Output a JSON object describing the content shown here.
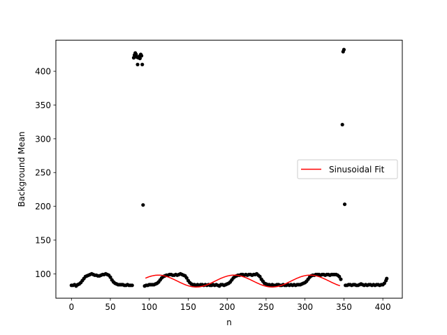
{
  "chart_data": {
    "type": "scatter",
    "xlabel": "n",
    "ylabel": "Background Mean",
    "xlim": [
      -20,
      425
    ],
    "ylim": [
      64,
      446
    ],
    "xticks": [
      0,
      50,
      100,
      150,
      200,
      250,
      300,
      350,
      400
    ],
    "yticks": [
      100,
      150,
      200,
      250,
      300,
      350,
      400
    ],
    "grid": false,
    "legend": {
      "entries": [
        "Sinusoidal Fit"
      ],
      "placement": "center-right"
    },
    "colors": {
      "points": "#000000",
      "fit": "#ff0000"
    },
    "series": [
      {
        "kind": "scatter",
        "points": [
          [
            0,
            83
          ],
          [
            2,
            83
          ],
          [
            4,
            84
          ],
          [
            6,
            82
          ],
          [
            8,
            84
          ],
          [
            10,
            85
          ],
          [
            12,
            87
          ],
          [
            14,
            90
          ],
          [
            16,
            93
          ],
          [
            18,
            96
          ],
          [
            20,
            97
          ],
          [
            22,
            98
          ],
          [
            24,
            99
          ],
          [
            26,
            100
          ],
          [
            28,
            99
          ],
          [
            30,
            98
          ],
          [
            32,
            98
          ],
          [
            34,
            97
          ],
          [
            36,
            97
          ],
          [
            38,
            98
          ],
          [
            40,
            99
          ],
          [
            42,
            99
          ],
          [
            44,
            100
          ],
          [
            46,
            99
          ],
          [
            48,
            98
          ],
          [
            50,
            95
          ],
          [
            52,
            91
          ],
          [
            54,
            88
          ],
          [
            56,
            86
          ],
          [
            58,
            85
          ],
          [
            60,
            84
          ],
          [
            62,
            84
          ],
          [
            64,
            84
          ],
          [
            66,
            84
          ],
          [
            68,
            83
          ],
          [
            70,
            83
          ],
          [
            72,
            84
          ],
          [
            74,
            83
          ],
          [
            76,
            83
          ],
          [
            78,
            83
          ],
          [
            80,
            420
          ],
          [
            81,
            424
          ],
          [
            82,
            427
          ],
          [
            83,
            425
          ],
          [
            84,
            421
          ],
          [
            85,
            410
          ],
          [
            86,
            420
          ],
          [
            87,
            422
          ],
          [
            88,
            419
          ],
          [
            89,
            425
          ],
          [
            90,
            423
          ],
          [
            91,
            410
          ],
          [
            92,
            202
          ],
          [
            94,
            82
          ],
          [
            96,
            83
          ],
          [
            98,
            83
          ],
          [
            100,
            84
          ],
          [
            102,
            84
          ],
          [
            104,
            84
          ],
          [
            106,
            84
          ],
          [
            108,
            85
          ],
          [
            110,
            86
          ],
          [
            112,
            88
          ],
          [
            114,
            91
          ],
          [
            116,
            94
          ],
          [
            118,
            96
          ],
          [
            120,
            97
          ],
          [
            122,
            98
          ],
          [
            124,
            98
          ],
          [
            126,
            99
          ],
          [
            128,
            99
          ],
          [
            130,
            98
          ],
          [
            132,
            98
          ],
          [
            134,
            99
          ],
          [
            136,
            98
          ],
          [
            138,
            99
          ],
          [
            140,
            100
          ],
          [
            142,
            99
          ],
          [
            144,
            98
          ],
          [
            146,
            97
          ],
          [
            148,
            94
          ],
          [
            150,
            90
          ],
          [
            152,
            87
          ],
          [
            154,
            85
          ],
          [
            156,
            84
          ],
          [
            158,
            84
          ],
          [
            160,
            83
          ],
          [
            162,
            84
          ],
          [
            164,
            83
          ],
          [
            166,
            84
          ],
          [
            168,
            84
          ],
          [
            170,
            83
          ],
          [
            172,
            84
          ],
          [
            174,
            83
          ],
          [
            176,
            84
          ],
          [
            178,
            83
          ],
          [
            180,
            83
          ],
          [
            182,
            84
          ],
          [
            184,
            83
          ],
          [
            186,
            84
          ],
          [
            188,
            83
          ],
          [
            190,
            82
          ],
          [
            192,
            84
          ],
          [
            194,
            84
          ],
          [
            196,
            83
          ],
          [
            198,
            84
          ],
          [
            200,
            85
          ],
          [
            202,
            86
          ],
          [
            204,
            88
          ],
          [
            206,
            91
          ],
          [
            208,
            94
          ],
          [
            210,
            96
          ],
          [
            212,
            97
          ],
          [
            214,
            98
          ],
          [
            216,
            98
          ],
          [
            218,
            99
          ],
          [
            220,
            99
          ],
          [
            222,
            98
          ],
          [
            224,
            99
          ],
          [
            226,
            98
          ],
          [
            228,
            99
          ],
          [
            230,
            99
          ],
          [
            232,
            98
          ],
          [
            234,
            99
          ],
          [
            236,
            99
          ],
          [
            238,
            100
          ],
          [
            240,
            98
          ],
          [
            242,
            96
          ],
          [
            244,
            92
          ],
          [
            246,
            89
          ],
          [
            248,
            86
          ],
          [
            250,
            85
          ],
          [
            252,
            84
          ],
          [
            254,
            84
          ],
          [
            256,
            83
          ],
          [
            258,
            84
          ],
          [
            260,
            83
          ],
          [
            262,
            83
          ],
          [
            264,
            84
          ],
          [
            266,
            84
          ],
          [
            268,
            83
          ],
          [
            270,
            83
          ],
          [
            272,
            84
          ],
          [
            274,
            83
          ],
          [
            276,
            83
          ],
          [
            278,
            84
          ],
          [
            280,
            83
          ],
          [
            282,
            84
          ],
          [
            284,
            83
          ],
          [
            286,
            84
          ],
          [
            288,
            83
          ],
          [
            290,
            84
          ],
          [
            292,
            84
          ],
          [
            294,
            84
          ],
          [
            296,
            85
          ],
          [
            298,
            86
          ],
          [
            300,
            87
          ],
          [
            302,
            89
          ],
          [
            304,
            92
          ],
          [
            306,
            95
          ],
          [
            308,
            97
          ],
          [
            310,
            98
          ],
          [
            312,
            98
          ],
          [
            314,
            99
          ],
          [
            316,
            99
          ],
          [
            318,
            99
          ],
          [
            320,
            98
          ],
          [
            322,
            99
          ],
          [
            324,
            99
          ],
          [
            326,
            98
          ],
          [
            328,
            99
          ],
          [
            330,
            99
          ],
          [
            332,
            98
          ],
          [
            334,
            99
          ],
          [
            336,
            99
          ],
          [
            338,
            99
          ],
          [
            340,
            99
          ],
          [
            342,
            98
          ],
          [
            344,
            96
          ],
          [
            346,
            92
          ],
          [
            348,
            321
          ],
          [
            349,
            429
          ],
          [
            350,
            432
          ],
          [
            351,
            203
          ],
          [
            352,
            83
          ],
          [
            354,
            83
          ],
          [
            356,
            84
          ],
          [
            358,
            84
          ],
          [
            360,
            83
          ],
          [
            362,
            84
          ],
          [
            364,
            84
          ],
          [
            366,
            83
          ],
          [
            368,
            83
          ],
          [
            370,
            84
          ],
          [
            372,
            85
          ],
          [
            374,
            84
          ],
          [
            376,
            83
          ],
          [
            378,
            84
          ],
          [
            380,
            83
          ],
          [
            382,
            84
          ],
          [
            384,
            84
          ],
          [
            386,
            83
          ],
          [
            388,
            84
          ],
          [
            390,
            83
          ],
          [
            392,
            84
          ],
          [
            394,
            84
          ],
          [
            396,
            83
          ],
          [
            398,
            84
          ],
          [
            400,
            84
          ],
          [
            402,
            86
          ],
          [
            404,
            90
          ],
          [
            405,
            93
          ]
        ]
      },
      {
        "kind": "line",
        "name": "Sinusoidal Fit",
        "x_range": [
          95,
          345
        ],
        "model": {
          "offset": 89.3,
          "amplitude": 8.8,
          "period": 97.5,
          "phase_x": 160.3
        }
      }
    ]
  }
}
